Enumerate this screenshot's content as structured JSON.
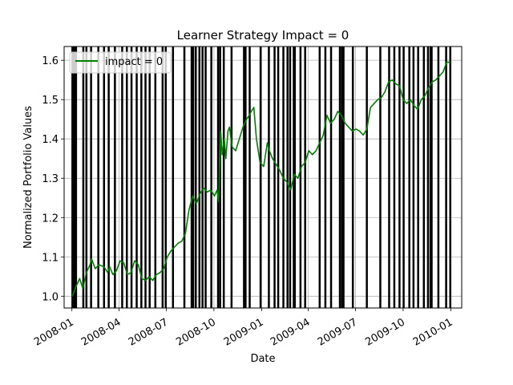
{
  "chart_data": {
    "type": "line",
    "title": "Learner Strategy Impact = 0",
    "xlabel": "Date",
    "ylabel": "Normalized Portfolio Values",
    "xlim": [
      "2007-12-17",
      "2010-01-22"
    ],
    "ylim": [
      0.97,
      1.635
    ],
    "x_ticks": [
      "2008-01-01",
      "2008-04-01",
      "2008-07-01",
      "2008-10-01",
      "2009-01-01",
      "2009-04-01",
      "2009-07-01",
      "2009-10-01",
      "2010-01-01"
    ],
    "x_tick_labels": [
      "2008-01",
      "2008-04",
      "2008-07",
      "2008-10",
      "2009-01",
      "2009-04",
      "2009-07",
      "2009-10",
      "2010-01"
    ],
    "y_ticks": [
      1.0,
      1.1,
      1.2,
      1.3,
      1.4,
      1.5,
      1.6
    ],
    "y_tick_labels": [
      "1.0",
      "1.1",
      "1.2",
      "1.3",
      "1.4",
      "1.5",
      "1.6"
    ],
    "grid": true,
    "legend_position": "top-left",
    "series": [
      {
        "name": "impact = 0",
        "color": "#008000",
        "points": [
          [
            "2008-01-02",
            1.0
          ],
          [
            "2008-01-09",
            1.025
          ],
          [
            "2008-01-16",
            1.045
          ],
          [
            "2008-01-22",
            1.02
          ],
          [
            "2008-01-29",
            1.06
          ],
          [
            "2008-02-05",
            1.08
          ],
          [
            "2008-02-08",
            1.095
          ],
          [
            "2008-02-15",
            1.07
          ],
          [
            "2008-02-22",
            1.08
          ],
          [
            "2008-03-03",
            1.075
          ],
          [
            "2008-03-10",
            1.06
          ],
          [
            "2008-03-14",
            1.075
          ],
          [
            "2008-03-20",
            1.055
          ],
          [
            "2008-03-27",
            1.065
          ],
          [
            "2008-04-03",
            1.09
          ],
          [
            "2008-04-10",
            1.085
          ],
          [
            "2008-04-17",
            1.055
          ],
          [
            "2008-04-24",
            1.06
          ],
          [
            "2008-05-01",
            1.09
          ],
          [
            "2008-05-08",
            1.08
          ],
          [
            "2008-05-15",
            1.045
          ],
          [
            "2008-05-22",
            1.04
          ],
          [
            "2008-05-29",
            1.05
          ],
          [
            "2008-06-05",
            1.04
          ],
          [
            "2008-06-12",
            1.055
          ],
          [
            "2008-06-19",
            1.06
          ],
          [
            "2008-06-26",
            1.07
          ],
          [
            "2008-07-03",
            1.1
          ],
          [
            "2008-07-10",
            1.115
          ],
          [
            "2008-07-17",
            1.125
          ],
          [
            "2008-07-24",
            1.135
          ],
          [
            "2008-07-31",
            1.14
          ],
          [
            "2008-08-07",
            1.16
          ],
          [
            "2008-08-14",
            1.22
          ],
          [
            "2008-08-21",
            1.255
          ],
          [
            "2008-08-28",
            1.235
          ],
          [
            "2008-09-04",
            1.26
          ],
          [
            "2008-09-11",
            1.275
          ],
          [
            "2008-09-18",
            1.265
          ],
          [
            "2008-09-25",
            1.27
          ],
          [
            "2008-10-02",
            1.255
          ],
          [
            "2008-10-07",
            1.27
          ],
          [
            "2008-10-10",
            1.24
          ],
          [
            "2008-10-14",
            1.42
          ],
          [
            "2008-10-17",
            1.36
          ],
          [
            "2008-10-21",
            1.4
          ],
          [
            "2008-10-24",
            1.35
          ],
          [
            "2008-10-28",
            1.42
          ],
          [
            "2008-10-31",
            1.43
          ],
          [
            "2008-11-05",
            1.38
          ],
          [
            "2008-11-12",
            1.37
          ],
          [
            "2008-11-19",
            1.4
          ],
          [
            "2008-11-26",
            1.43
          ],
          [
            "2008-12-03",
            1.45
          ],
          [
            "2008-12-08",
            1.46
          ],
          [
            "2008-12-12",
            1.47
          ],
          [
            "2008-12-17",
            1.48
          ],
          [
            "2008-12-22",
            1.4
          ],
          [
            "2008-12-29",
            1.34
          ],
          [
            "2009-01-05",
            1.33
          ],
          [
            "2009-01-12",
            1.39
          ],
          [
            "2009-01-16",
            1.37
          ],
          [
            "2009-01-22",
            1.35
          ],
          [
            "2009-01-29",
            1.335
          ],
          [
            "2009-02-05",
            1.32
          ],
          [
            "2009-02-12",
            1.3
          ],
          [
            "2009-02-19",
            1.29
          ],
          [
            "2009-02-26",
            1.27
          ],
          [
            "2009-03-05",
            1.31
          ],
          [
            "2009-03-12",
            1.3
          ],
          [
            "2009-03-19",
            1.33
          ],
          [
            "2009-03-26",
            1.34
          ],
          [
            "2009-04-02",
            1.37
          ],
          [
            "2009-04-09",
            1.36
          ],
          [
            "2009-04-16",
            1.37
          ],
          [
            "2009-04-23",
            1.39
          ],
          [
            "2009-04-30",
            1.41
          ],
          [
            "2009-05-07",
            1.46
          ],
          [
            "2009-05-14",
            1.44
          ],
          [
            "2009-05-21",
            1.45
          ],
          [
            "2009-05-28",
            1.47
          ],
          [
            "2009-06-04",
            1.46
          ],
          [
            "2009-06-11",
            1.44
          ],
          [
            "2009-06-18",
            1.43
          ],
          [
            "2009-06-25",
            1.42
          ],
          [
            "2009-07-02",
            1.425
          ],
          [
            "2009-07-09",
            1.42
          ],
          [
            "2009-07-16",
            1.41
          ],
          [
            "2009-07-23",
            1.425
          ],
          [
            "2009-07-30",
            1.48
          ],
          [
            "2009-08-06",
            1.49
          ],
          [
            "2009-08-13",
            1.5
          ],
          [
            "2009-08-20",
            1.505
          ],
          [
            "2009-08-27",
            1.52
          ],
          [
            "2009-09-03",
            1.545
          ],
          [
            "2009-09-10",
            1.55
          ],
          [
            "2009-09-17",
            1.54
          ],
          [
            "2009-09-24",
            1.535
          ],
          [
            "2009-10-01",
            1.5
          ],
          [
            "2009-10-08",
            1.49
          ],
          [
            "2009-10-15",
            1.5
          ],
          [
            "2009-10-22",
            1.485
          ],
          [
            "2009-10-29",
            1.475
          ],
          [
            "2009-11-05",
            1.5
          ],
          [
            "2009-11-12",
            1.51
          ],
          [
            "2009-11-19",
            1.53
          ],
          [
            "2009-11-26",
            1.545
          ],
          [
            "2009-12-03",
            1.55
          ],
          [
            "2009-12-10",
            1.56
          ],
          [
            "2009-12-17",
            1.57
          ],
          [
            "2009-12-24",
            1.595
          ],
          [
            "2009-12-31",
            1.595
          ]
        ]
      }
    ],
    "vertical_lines": {
      "color": "#000000",
      "dates": [
        "2008-01-02",
        "2008-01-04",
        "2008-01-07",
        "2008-01-09",
        "2008-01-23",
        "2008-01-29",
        "2008-02-07",
        "2008-02-21",
        "2008-03-03",
        "2008-03-12",
        "2008-03-24",
        "2008-04-07",
        "2008-04-16",
        "2008-04-25",
        "2008-05-05",
        "2008-05-14",
        "2008-05-22",
        "2008-05-30",
        "2008-06-10",
        "2008-06-24",
        "2008-06-30",
        "2008-07-14",
        "2008-08-05",
        "2008-08-19",
        "2008-08-22",
        "2008-08-27",
        "2008-09-03",
        "2008-09-09",
        "2008-09-15",
        "2008-09-26",
        "2008-10-09",
        "2008-10-13",
        "2008-10-20",
        "2008-11-04",
        "2008-11-28",
        "2008-12-01",
        "2008-12-09",
        "2008-12-30",
        "2009-01-15",
        "2009-01-26",
        "2009-02-02",
        "2009-02-12",
        "2009-02-20",
        "2009-02-25",
        "2009-03-04",
        "2009-03-06",
        "2009-03-17",
        "2009-03-26",
        "2009-04-23",
        "2009-05-04",
        "2009-05-15",
        "2009-06-01",
        "2009-06-05",
        "2009-06-08",
        "2009-06-26",
        "2009-07-23",
        "2009-08-18",
        "2009-09-04",
        "2009-09-14",
        "2009-09-24",
        "2009-10-02",
        "2009-10-13",
        "2009-10-21",
        "2009-10-30",
        "2009-11-10",
        "2009-11-18",
        "2009-11-23",
        "2009-11-25",
        "2009-12-08",
        "2009-12-23",
        "2009-12-31"
      ]
    }
  }
}
